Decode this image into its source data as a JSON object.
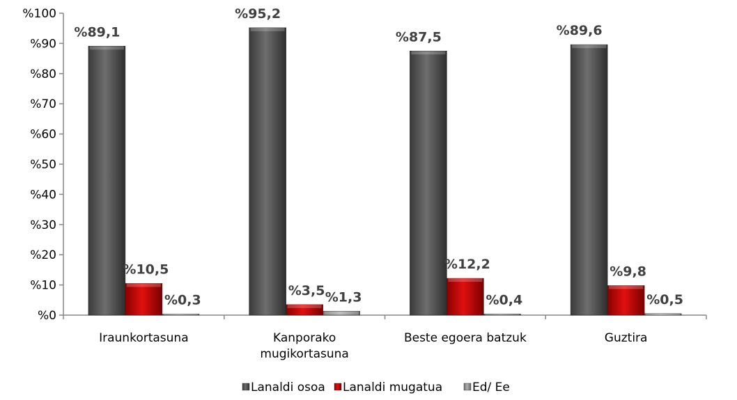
{
  "chart_data": {
    "type": "bar",
    "categories": [
      [
        "Iraunkortasuna"
      ],
      [
        "Kanporako",
        "mugikortasuna"
      ],
      [
        "Beste egoera batzuk"
      ],
      [
        "Guztira"
      ]
    ],
    "series": [
      {
        "name": "Lanaldi osoa",
        "values": [
          89.1,
          95.2,
          87.5,
          89.6
        ],
        "labels": [
          "%89,1",
          "%95,2",
          "%87,5",
          "%89,6"
        ],
        "color": "#555555"
      },
      {
        "name": "Lanaldi mugatua",
        "values": [
          10.5,
          3.5,
          12.2,
          9.8
        ],
        "labels": [
          "%10,5",
          "%3,5",
          "%12,2",
          "%9,8"
        ],
        "color": "#b00000"
      },
      {
        "name": "Ed/ Ee",
        "values": [
          0.3,
          1.3,
          0.4,
          0.5
        ],
        "labels": [
          "%0,3",
          "%1,3",
          "%0,4",
          "%0,5"
        ],
        "color": "#8c8c8c"
      }
    ],
    "yticks": [
      "%0",
      "%10",
      "%20",
      "%30",
      "%40",
      "%50",
      "%60",
      "%70",
      "%80",
      "%90",
      "%100"
    ],
    "ylim": [
      0,
      100
    ],
    "legend": "bottom",
    "grid": false
  }
}
